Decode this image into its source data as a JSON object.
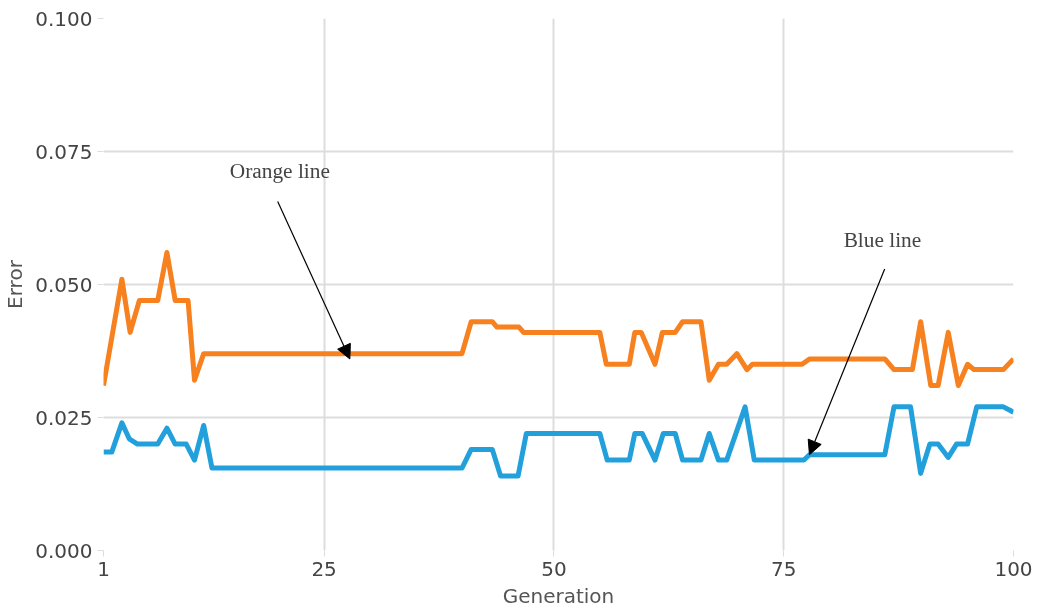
{
  "chart_data": {
    "type": "line",
    "xlabel": "Generation",
    "ylabel": "Error",
    "xlim": [
      1,
      100
    ],
    "xticks": [
      1,
      25,
      50,
      75,
      100
    ],
    "ylim": [
      0,
      0.1
    ],
    "yticks": [
      {
        "value": 0,
        "label": "0.000"
      },
      {
        "value": 0.025,
        "label": "0.025"
      },
      {
        "value": 0.05,
        "label": "0.050"
      },
      {
        "value": 0.075,
        "label": "0.075"
      },
      {
        "value": 0.1,
        "label": "0.100"
      }
    ],
    "grid": true,
    "line_style": "solid",
    "marker": "none",
    "series": [
      {
        "color": "#f7801f",
        "x": [
          1,
          3,
          3.9,
          4.9,
          6.9,
          7.9,
          8.8,
          10.2,
          10.9,
          11.9,
          40,
          41,
          43.3,
          43.8,
          46.2,
          46.7,
          55,
          55.7,
          58.2,
          58.8,
          59.5,
          61,
          61.8,
          63.2,
          64,
          66,
          66.9,
          67.9,
          68.8,
          69.9,
          71,
          71.6,
          77,
          77.8,
          86,
          87,
          89,
          89.9,
          91,
          91.8,
          92.9,
          94,
          95,
          95.7,
          98.9,
          100
        ],
        "values": [
          0.031,
          0.051,
          0.041,
          0.047,
          0.047,
          0.056,
          0.047,
          0.047,
          0.032,
          0.037,
          0.037,
          0.043,
          0.043,
          0.042,
          0.042,
          0.041,
          0.041,
          0.035,
          0.035,
          0.041,
          0.041,
          0.035,
          0.041,
          0.041,
          0.043,
          0.043,
          0.032,
          0.035,
          0.035,
          0.037,
          0.034,
          0.035,
          0.035,
          0.036,
          0.036,
          0.034,
          0.034,
          0.043,
          0.031,
          0.031,
          0.041,
          0.031,
          0.035,
          0.034,
          0.034,
          0.036
        ]
      },
      {
        "color": "#22a0dc",
        "x": [
          1,
          1.9,
          3,
          3.8,
          4.7,
          6.9,
          7.9,
          8.8,
          10,
          10.9,
          11.9,
          12.8,
          40,
          41,
          43.3,
          44.2,
          46.1,
          47,
          55,
          55.8,
          58.2,
          58.8,
          59.6,
          61,
          61.9,
          63.2,
          64,
          66,
          66.9,
          67.9,
          68.8,
          70.8,
          71.8,
          77.2,
          77.8,
          86,
          87,
          88.8,
          89.9,
          90.9,
          91.8,
          92.9,
          93.8,
          95,
          96,
          98.9,
          100
        ],
        "values": [
          0.0185,
          0.0185,
          0.024,
          0.021,
          0.02,
          0.02,
          0.023,
          0.02,
          0.02,
          0.017,
          0.0235,
          0.0155,
          0.0155,
          0.019,
          0.019,
          0.014,
          0.014,
          0.022,
          0.022,
          0.017,
          0.017,
          0.022,
          0.022,
          0.017,
          0.022,
          0.022,
          0.017,
          0.017,
          0.022,
          0.017,
          0.017,
          0.027,
          0.017,
          0.017,
          0.018,
          0.018,
          0.027,
          0.027,
          0.0145,
          0.02,
          0.02,
          0.0175,
          0.02,
          0.02,
          0.027,
          0.027,
          0.026
        ]
      }
    ],
    "annotations": [
      {
        "text": "Orange line",
        "x": 27.8,
        "y": 0.036
      },
      {
        "text": "Blue line",
        "x": 77.8,
        "y": 0.018
      }
    ]
  }
}
